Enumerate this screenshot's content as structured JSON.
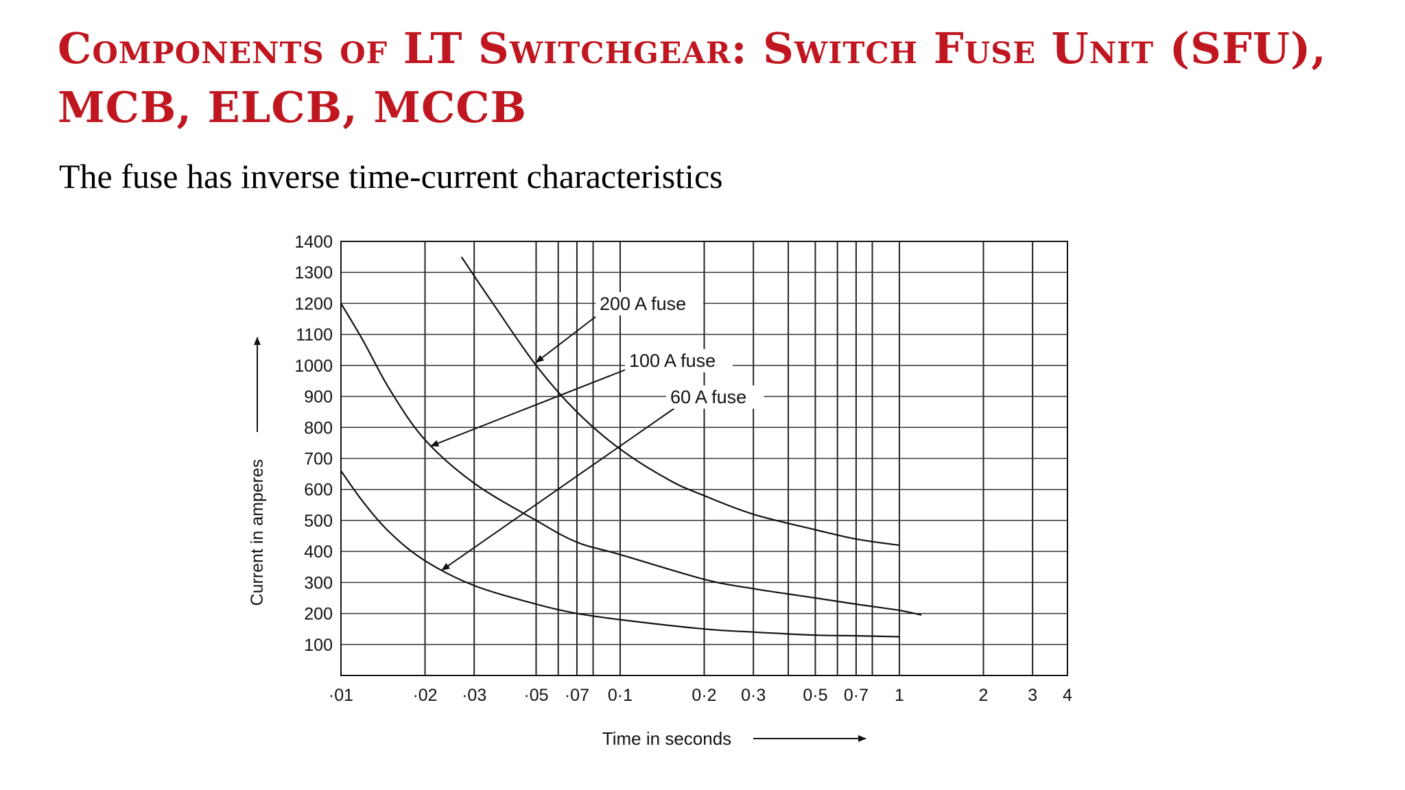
{
  "slide": {
    "title": "Components of LT Switchgear: Switch Fuse Unit (SFU), MCB, ELCB, MCCB",
    "subtitle": "The fuse has inverse time-current characteristics"
  },
  "chart_data": {
    "type": "line",
    "xlabel": "Time in seconds",
    "ylabel": "Current in amperes",
    "x_scale": "log",
    "xlim": [
      0.01,
      4
    ],
    "ylim": [
      0,
      1400
    ],
    "x_ticks": [
      {
        "value": 0.01,
        "label": "·01"
      },
      {
        "value": 0.02,
        "label": "·02"
      },
      {
        "value": 0.03,
        "label": "·03"
      },
      {
        "value": 0.05,
        "label": "·05"
      },
      {
        "value": 0.07,
        "label": "·07"
      },
      {
        "value": 0.1,
        "label": "0·1"
      },
      {
        "value": 0.2,
        "label": "0·2"
      },
      {
        "value": 0.3,
        "label": "0·3"
      },
      {
        "value": 0.5,
        "label": "0·5"
      },
      {
        "value": 0.7,
        "label": "0·7"
      },
      {
        "value": 1,
        "label": "1"
      },
      {
        "value": 2,
        "label": "2"
      },
      {
        "value": 3,
        "label": "3"
      },
      {
        "value": 4,
        "label": "4"
      }
    ],
    "y_ticks": [
      100,
      200,
      300,
      400,
      500,
      600,
      700,
      800,
      900,
      1000,
      1100,
      1200,
      1300,
      1400
    ],
    "x_grid": [
      0.01,
      0.02,
      0.03,
      0.05,
      0.06,
      0.07,
      0.08,
      0.1,
      0.2,
      0.3,
      0.4,
      0.5,
      0.6,
      0.7,
      0.8,
      1,
      2,
      3,
      4
    ],
    "grid": true,
    "series": [
      {
        "name": "200 A fuse",
        "x": [
          0.027,
          0.035,
          0.05,
          0.07,
          0.1,
          0.15,
          0.2,
          0.3,
          0.5,
          0.7,
          1.0
        ],
        "y": [
          1350,
          1200,
          1000,
          850,
          730,
          630,
          580,
          520,
          470,
          440,
          420
        ]
      },
      {
        "name": "100 A fuse",
        "x": [
          0.01,
          0.012,
          0.015,
          0.02,
          0.03,
          0.05,
          0.07,
          0.1,
          0.2,
          0.3,
          0.5,
          0.7,
          1.0,
          1.2
        ],
        "y": [
          1200,
          1080,
          920,
          760,
          620,
          500,
          430,
          390,
          310,
          280,
          250,
          230,
          210,
          195
        ]
      },
      {
        "name": "60 A fuse",
        "x": [
          0.01,
          0.012,
          0.015,
          0.02,
          0.03,
          0.05,
          0.07,
          0.1,
          0.2,
          0.3,
          0.5,
          0.7,
          1.0
        ],
        "y": [
          660,
          560,
          460,
          370,
          290,
          230,
          200,
          180,
          150,
          140,
          130,
          128,
          125
        ]
      }
    ],
    "annotations": [
      {
        "text": "200 A fuse",
        "series": "200 A fuse",
        "target": [
          0.05,
          1010
        ]
      },
      {
        "text": "100 A fuse",
        "series": "100 A fuse",
        "target": [
          0.021,
          740
        ]
      },
      {
        "text": "60 A fuse",
        "series": "60 A fuse",
        "target": [
          0.023,
          340
        ]
      }
    ]
  }
}
